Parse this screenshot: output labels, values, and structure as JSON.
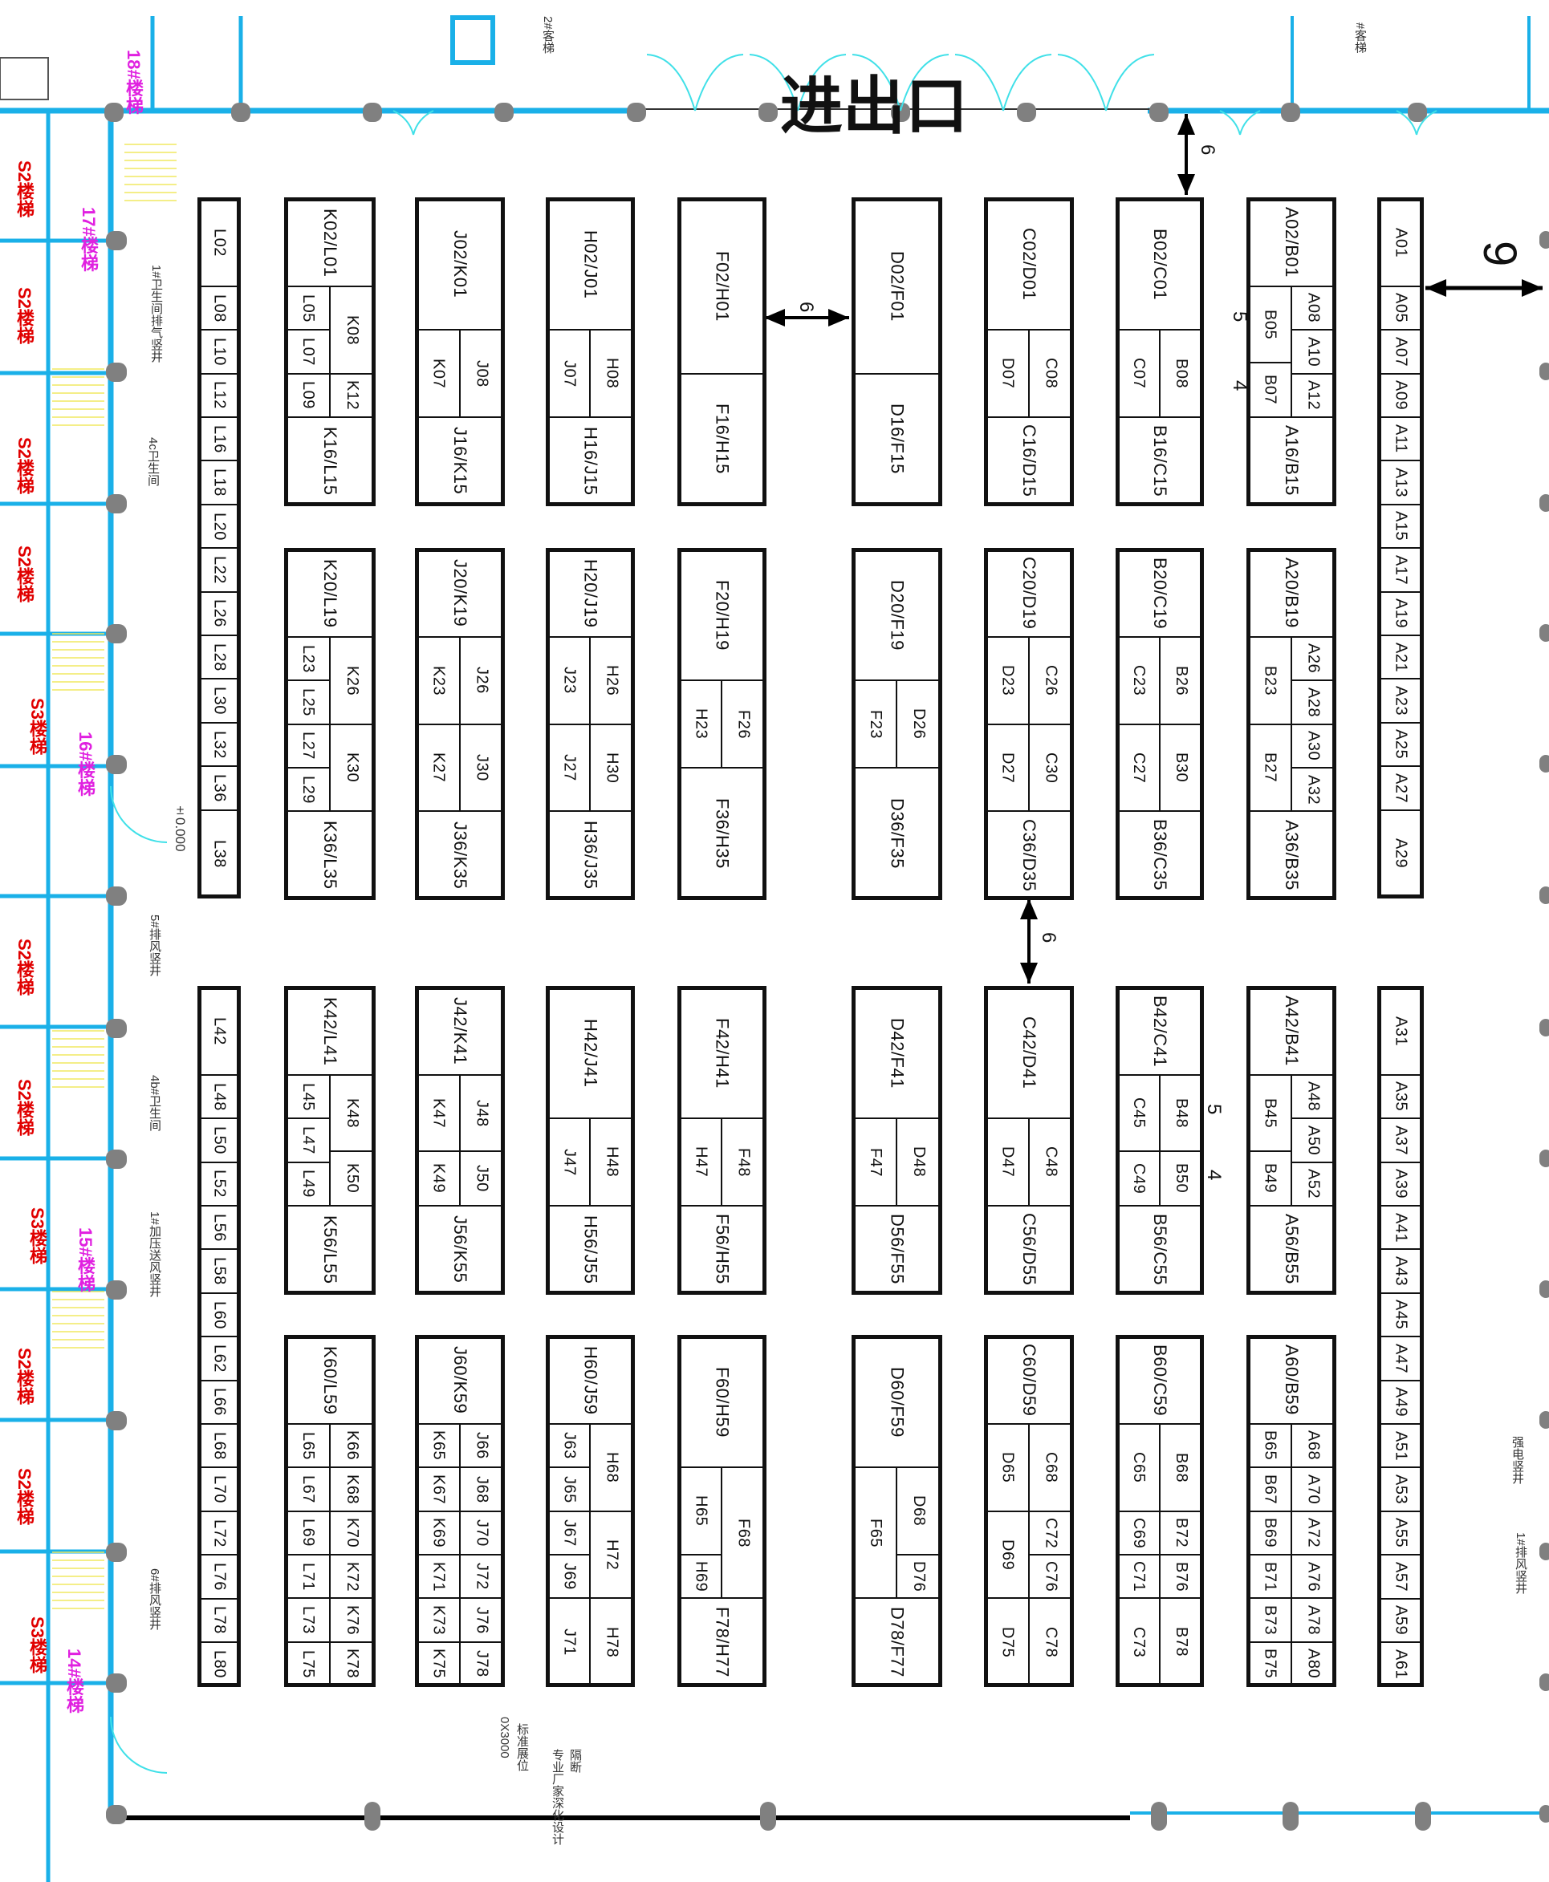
{
  "entrance_label": "进出口",
  "colors": {
    "wall": "#1ab0e8",
    "booth_line": "#111111",
    "column": "#808080",
    "stair_red": "#e00000",
    "stair_magenta": "#e020e0",
    "door": "#40e0e8"
  },
  "aisle_labels": {
    "top_vertical": "6",
    "block_gap": "6",
    "right_wall": "9",
    "mid_vertical": "6",
    "ab_upper_5": "5",
    "ab_upper_4": "4",
    "bc_lower_5": "5",
    "bc_lower_4": "4"
  },
  "level_mark": "±0.000",
  "notes": {
    "booth_spec": "标准展位",
    "booth_size": "0X3000",
    "partition": "隔断",
    "partition_note": "专业厂家深化设计",
    "elevator_2": "2#客梯",
    "elevator_top_right": "#客梯",
    "wc_exhaust_1": "1#卫生间排气竖井",
    "wc_4c": "4c卫生间",
    "exhaust_5": "5#排风竖井",
    "wc_4b": "4b#卫生间",
    "pressurized_1": "1#加压送风竖井",
    "exhaust_6": "6#排风竖井",
    "power_shaft": "强电竖井",
    "exhaust_1": "1#排风竖井"
  },
  "stairs": {
    "red": [
      "S2楼梯",
      "S2楼梯",
      "S2楼梯",
      "S2楼梯",
      "S2楼梯",
      "S2楼梯",
      "S2楼梯",
      "S2楼梯",
      "S3楼梯",
      "S3楼梯",
      "S3楼梯"
    ],
    "magenta": [
      "18#楼梯",
      "17#楼梯",
      "16#楼梯",
      "15#楼梯",
      "14#楼梯"
    ]
  },
  "booths": {
    "L_upper": [
      "L02",
      "L08",
      "L10",
      "L12",
      "L16",
      "L18",
      "L20",
      "L22",
      "L26",
      "L28",
      "L30",
      "L32",
      "L36",
      "L38"
    ],
    "L_lower": [
      "L42",
      "L48",
      "L50",
      "L52",
      "L56",
      "L58",
      "L60",
      "L62",
      "L66",
      "L68",
      "L70",
      "L72",
      "L76",
      "L78",
      "L80"
    ],
    "A_upper": [
      "A01",
      "A05",
      "A07",
      "A09",
      "A11",
      "A13",
      "A15",
      "A17",
      "A19",
      "A21",
      "A23",
      "A25",
      "A27",
      "A29"
    ],
    "A_lower": [
      "A31",
      "A35",
      "A37",
      "A39",
      "A41",
      "A43",
      "A45",
      "A47",
      "A49",
      "A51",
      "A53",
      "A55",
      "A57",
      "A59",
      "A61"
    ],
    "block1": {
      "KL": [
        "K02/L01",
        "L05",
        "L07",
        "L09",
        "K08",
        "K12",
        "K16/L15"
      ],
      "JK": [
        "J02/K01",
        "K07",
        "J08",
        "J16/K15"
      ],
      "HJ": [
        "H02/J01",
        "J07",
        "H08",
        "H16/J15"
      ],
      "FH": [
        "F02/H01",
        "F16/H15"
      ],
      "DF": [
        "D02/F01",
        "D16/F15"
      ],
      "CD": [
        "C02/D01",
        "D07",
        "C08",
        "C16/D15"
      ],
      "BC": [
        "B02/C01",
        "C07",
        "B08",
        "B16/C15"
      ],
      "AB": [
        "A02/B01",
        "B05",
        "B07",
        "A08",
        "A10",
        "A12",
        "A16/B15"
      ]
    },
    "block2": {
      "KL": [
        "K20/L19",
        "L23",
        "L25",
        "L27",
        "L29",
        "K26",
        "K30",
        "K36/L35"
      ],
      "JK": [
        "J20/K19",
        "K23",
        "J26",
        "K27",
        "J30",
        "J36/K35"
      ],
      "HJ": [
        "H20/J19",
        "J23",
        "H26",
        "J27",
        "H30",
        "H36/J35"
      ],
      "FH": [
        "F20/H19",
        "H23",
        "F26",
        "F36/H35"
      ],
      "DF": [
        "D20/F19",
        "F23",
        "D26",
        "D36/F35"
      ],
      "CD": [
        "C20/D19",
        "D23",
        "C26",
        "D27",
        "C30",
        "C36/D35"
      ],
      "BC": [
        "B20/C19",
        "C23",
        "B26",
        "C27",
        "B30",
        "B36/C35"
      ],
      "AB": [
        "A20/B19",
        "B23",
        "B27",
        "A26",
        "A28",
        "A30",
        "A32",
        "A36/B35"
      ]
    },
    "block3": {
      "KL": [
        "K42/L41",
        "L45",
        "L47",
        "L49",
        "K48",
        "K50",
        "K56/L55"
      ],
      "JK": [
        "J42/K41",
        "K47",
        "J48",
        "K49",
        "J50",
        "J56/K55"
      ],
      "HJ": [
        "H42/J41",
        "J47",
        "H48",
        "H56/J55"
      ],
      "FH": [
        "F42/H41",
        "H47",
        "F48",
        "F56/H55"
      ],
      "DF": [
        "D42/F41",
        "F47",
        "D48",
        "D56/F55"
      ],
      "CD": [
        "C42/D41",
        "D47",
        "C48",
        "C56/D55"
      ],
      "BC": [
        "B42/C41",
        "C45",
        "B48",
        "C49",
        "B50",
        "B56/C55"
      ],
      "AB": [
        "A42/B41",
        "B45",
        "B49",
        "A48",
        "A50",
        "A52",
        "A56/B55"
      ]
    },
    "block4": {
      "KL": [
        "K60/L59",
        "L65",
        "L67",
        "L69",
        "L71",
        "L73",
        "L75",
        "K66",
        "K68",
        "K70",
        "K72",
        "K76",
        "K78"
      ],
      "JK": [
        "J60/K59",
        "K65",
        "K67",
        "K69",
        "K71",
        "K73",
        "K75",
        "J66",
        "J68",
        "J70",
        "J72",
        "J76",
        "J78"
      ],
      "HJ": [
        "H60/J59",
        "J63",
        "J65",
        "J67",
        "J69",
        "J71",
        "H68",
        "H72",
        "H78"
      ],
      "FH": [
        "F60/H59",
        "H65",
        "H69",
        "F68",
        "F78/H77"
      ],
      "DF": [
        "D60/F59",
        "F65",
        "D68",
        "D76",
        "D78/F77"
      ],
      "CD": [
        "C60/D59",
        "D65",
        "C68",
        "D69",
        "C72",
        "C76",
        "D75",
        "C78"
      ],
      "BC": [
        "B60/C59",
        "C65",
        "B68",
        "C69",
        "B72",
        "C71",
        "B76",
        "C73",
        "B78"
      ],
      "AB": [
        "A60/B59",
        "B65",
        "B67",
        "B69",
        "B71",
        "B73",
        "B75",
        "A68",
        "A70",
        "A72",
        "A76",
        "A78",
        "A80"
      ]
    }
  }
}
